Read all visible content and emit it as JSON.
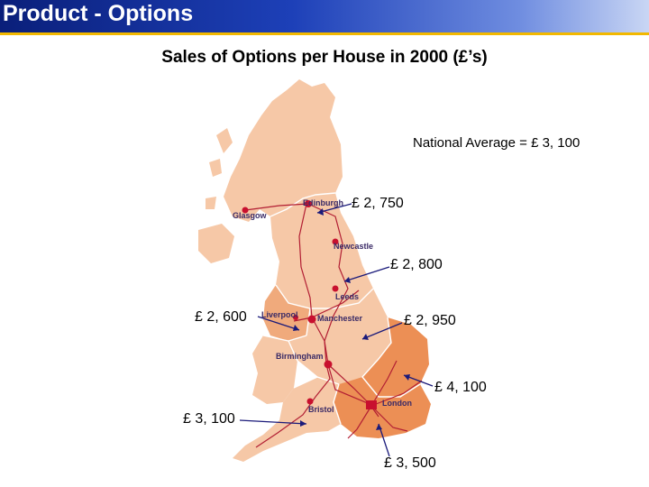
{
  "header": {
    "title": "Product - Options"
  },
  "subtitle": "Sales of Options per House in 2000  (£’s)",
  "national_average": "National Average = £ 3, 100",
  "colors": {
    "land_light": "#f6c8a7",
    "land_mid": "#f0aa7c",
    "land_dark": "#ec8f55",
    "roads": "#b21e33",
    "header_blue": "#1d40b8",
    "accent_gold": "#f2b800"
  },
  "cities": {
    "edinburgh": "Edinburgh",
    "glasgow": "Glasgow",
    "newcastle": "Newcastle",
    "leeds": "Leeds",
    "liverpool": "Liverpool",
    "manchester": "Manchester",
    "birmingham": "Birmingham",
    "bristol": "Bristol",
    "london": "London"
  },
  "regions": [
    {
      "id": "scotland",
      "value": "£ 2, 750"
    },
    {
      "id": "north-east",
      "value": "£ 2, 800"
    },
    {
      "id": "north-west",
      "value": "£ 2, 600"
    },
    {
      "id": "midlands",
      "value": "£ 2, 950"
    },
    {
      "id": "east-anglia",
      "value": "£ 4, 100"
    },
    {
      "id": "south-west",
      "value": "£ 3, 100"
    },
    {
      "id": "south-east",
      "value": "£ 3, 500"
    }
  ]
}
